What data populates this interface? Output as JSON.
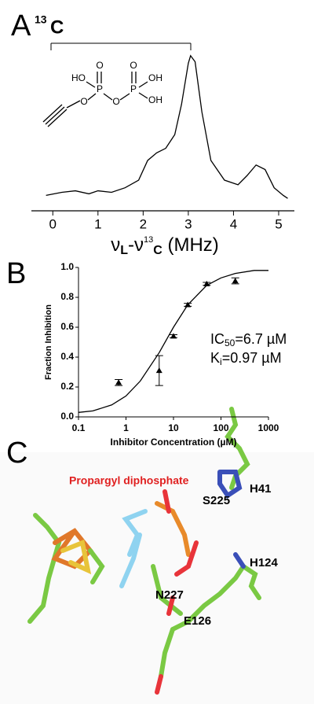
{
  "panel_labels": {
    "a": "A",
    "a_mass": "13",
    "a_element": "C",
    "b": "B",
    "c": "C"
  },
  "chart_data": [
    {
      "type": "line",
      "x": [
        -0.15,
        0.2,
        0.5,
        0.8,
        1.0,
        1.3,
        1.6,
        1.9,
        2.1,
        2.3,
        2.5,
        2.7,
        2.85,
        3.0,
        3.05,
        3.15,
        3.3,
        3.5,
        3.8,
        4.1,
        4.3,
        4.5,
        4.7,
        4.9,
        5.1,
        5.2
      ],
      "values": [
        0.05,
        0.07,
        0.08,
        0.06,
        0.08,
        0.07,
        0.1,
        0.15,
        0.28,
        0.33,
        0.36,
        0.45,
        0.65,
        0.92,
        0.97,
        0.93,
        0.6,
        0.28,
        0.15,
        0.12,
        0.18,
        0.25,
        0.22,
        0.1,
        0.05,
        0.03
      ],
      "color": "#000000",
      "xlim": [
        -0.3,
        5.4
      ],
      "ylim": [
        0,
        1
      ],
      "xticks": [
        0,
        1,
        2,
        3,
        4,
        5
      ],
      "x_label": {
        "nu": "ν",
        "sub1": "L",
        "dash": "-ν",
        "sup": "13",
        "sub2": "C",
        "unit": " (MHz)"
      },
      "structure_labels": [
        "O",
        "O",
        "HO",
        "P",
        "OH",
        "P",
        "OH",
        "O",
        "O"
      ]
    },
    {
      "type": "scatter",
      "x": [
        0.7,
        5,
        10,
        20,
        50,
        200
      ],
      "values": [
        0.23,
        0.31,
        0.54,
        0.75,
        0.89,
        0.91
      ],
      "errors": [
        0.02,
        0.1,
        0.01,
        0.01,
        0.01,
        0.02
      ],
      "fit": {
        "x": [
          0.1,
          0.2,
          0.5,
          1,
          2,
          5,
          10,
          20,
          50,
          100,
          200,
          500,
          1000
        ],
        "values": [
          0.03,
          0.04,
          0.08,
          0.14,
          0.24,
          0.43,
          0.6,
          0.75,
          0.88,
          0.93,
          0.96,
          0.98,
          0.98
        ]
      },
      "xscale": "log",
      "xlim": [
        0.1,
        1000
      ],
      "ylim": [
        0,
        1
      ],
      "xticks": [
        0.1,
        1,
        10,
        100,
        1000
      ],
      "yticks": [
        {
          "value": 0,
          "label": "0.0"
        },
        {
          "value": 0.2,
          "label": "0.2"
        },
        {
          "value": 0.4,
          "label": "0.4"
        },
        {
          "value": 0.6,
          "label": "0.6"
        },
        {
          "value": 0.8,
          "label": "0.8"
        },
        {
          "value": 1,
          "label": "1.0"
        }
      ],
      "x_label": "Inhibitor Concentration (µM)",
      "y_label": "Fraction Inhibition",
      "annotations": [
        {
          "main": "IC",
          "sub": "50",
          "rest": "=6.7 µM"
        },
        {
          "main": "K",
          "sub": "i",
          "rest": "=0.97 µM"
        }
      ]
    }
  ],
  "panel_c": {
    "title": "Propargyl diphosphate",
    "residues": [
      "S225",
      "H41",
      "H124",
      "N227",
      "E126"
    ]
  }
}
